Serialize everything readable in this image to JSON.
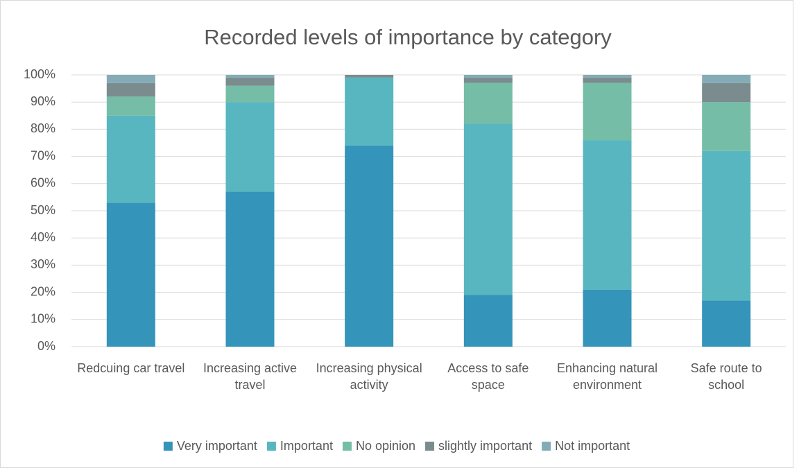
{
  "chart_data": {
    "type": "stacked_bar",
    "title": "Recorded levels of importance by category",
    "categories": [
      "Redcuing car travel",
      "Increasing active travel",
      "Increasing physical activity",
      "Access to safe space",
      "Enhancing natural environment",
      "Safe route to school"
    ],
    "series": [
      {
        "name": "Very important",
        "color": "#3494ba",
        "values": [
          53,
          57,
          74,
          19,
          21,
          17
        ]
      },
      {
        "name": "Important",
        "color": "#58b6c0",
        "values": [
          32,
          33,
          25,
          63,
          55,
          55
        ]
      },
      {
        "name": "No opinion",
        "color": "#75bda7",
        "values": [
          7,
          6,
          0,
          15,
          21,
          18
        ]
      },
      {
        "name": "slightly important",
        "color": "#7a8c8e",
        "values": [
          5,
          3,
          1,
          2,
          2,
          7
        ]
      },
      {
        "name": "Not important",
        "color": "#84acb6",
        "values": [
          3,
          1,
          0,
          1,
          1,
          3
        ]
      }
    ],
    "ylim": [
      0,
      100
    ],
    "yticks": [
      {
        "value": 0,
        "label": "0%"
      },
      {
        "value": 10,
        "label": "10%"
      },
      {
        "value": 20,
        "label": "20%"
      },
      {
        "value": 30,
        "label": "30%"
      },
      {
        "value": 40,
        "label": "40%"
      },
      {
        "value": 50,
        "label": "50%"
      },
      {
        "value": 60,
        "label": "60%"
      },
      {
        "value": 70,
        "label": "70%"
      },
      {
        "value": 80,
        "label": "80%"
      },
      {
        "value": 90,
        "label": "90%"
      },
      {
        "value": 100,
        "label": "100%"
      }
    ],
    "grid": true,
    "legend": "bottom"
  }
}
